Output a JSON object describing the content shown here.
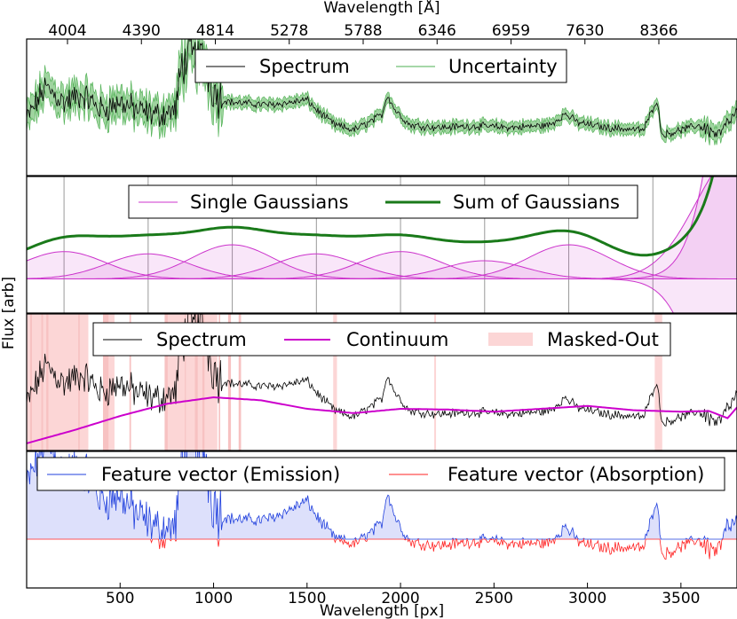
{
  "chart_data": {
    "type": "line",
    "shared": {
      "top_axis_label": "Wavelength [Å]",
      "top_ticks": [
        {
          "px": 100,
          "label": "4004"
        },
        {
          "px": 600,
          "label": "4390"
        },
        {
          "px": 1100,
          "label": "4814"
        },
        {
          "px": 1600,
          "label": "5278"
        },
        {
          "px": 2100,
          "label": "5788"
        },
        {
          "px": 2600,
          "label": "6346"
        },
        {
          "px": 3100,
          "label": "6959"
        },
        {
          "px": 3600,
          "label": "7630"
        },
        {
          "px": 4100,
          "label": "8366"
        }
      ],
      "bottom_axis_label": "Wavelength [px]",
      "bottom_ticks": [
        500,
        1000,
        1500,
        2000,
        2500,
        3000,
        3500
      ],
      "xlim": [
        0,
        3800
      ],
      "ylabel": "Flux [arb]",
      "grid": false
    },
    "panels": [
      {
        "name": "spectrum",
        "legend": [
          "Spectrum",
          "Uncertainty"
        ],
        "colors": {
          "spectrum": "#000000",
          "uncertainty": "#4caf50"
        },
        "ylim": [
          -1.0,
          1.7
        ],
        "anchors": [
          [
            0,
            0.1
          ],
          [
            100,
            0.75
          ],
          [
            200,
            0.45
          ],
          [
            300,
            0.6
          ],
          [
            400,
            0.3
          ],
          [
            500,
            0.45
          ],
          [
            600,
            0.28
          ],
          [
            700,
            0.2
          ],
          [
            800,
            0.3
          ],
          [
            830,
            1.2
          ],
          [
            880,
            1.4
          ],
          [
            950,
            1.3
          ],
          [
            1000,
            0.7
          ],
          [
            1050,
            0.5
          ],
          [
            1100,
            0.45
          ],
          [
            1200,
            0.42
          ],
          [
            1300,
            0.4
          ],
          [
            1400,
            0.44
          ],
          [
            1500,
            0.5
          ],
          [
            1550,
            0.3
          ],
          [
            1650,
            0.0
          ],
          [
            1750,
            -0.1
          ],
          [
            1830,
            0.05
          ],
          [
            1900,
            0.2
          ],
          [
            1930,
            0.6
          ],
          [
            1970,
            0.3
          ],
          [
            2050,
            0.0
          ],
          [
            2200,
            -0.05
          ],
          [
            2400,
            -0.02
          ],
          [
            2600,
            -0.05
          ],
          [
            2800,
            0.0
          ],
          [
            2880,
            0.22
          ],
          [
            2950,
            0.05
          ],
          [
            3100,
            -0.05
          ],
          [
            3300,
            -0.1
          ],
          [
            3370,
            0.5
          ],
          [
            3400,
            -0.2
          ],
          [
            3600,
            0.0
          ],
          [
            3700,
            -0.2
          ],
          [
            3800,
            0.25
          ]
        ]
      },
      {
        "name": "gaussians",
        "legend": [
          "Single Gaussians",
          "Sum of Gaussians"
        ],
        "colors": {
          "single": "#cc33cc",
          "sum": "#1a7a1a"
        },
        "ylim": [
          -0.15,
          0.45
        ],
        "vlines": [
          200,
          650,
          1100,
          1550,
          2000,
          2450,
          2900,
          3350
        ],
        "gaussians": [
          {
            "mu": 200,
            "sigma": 220,
            "amp": 0.12
          },
          {
            "mu": 650,
            "sigma": 220,
            "amp": 0.11
          },
          {
            "mu": 1100,
            "sigma": 220,
            "amp": 0.15
          },
          {
            "mu": 1550,
            "sigma": 220,
            "amp": 0.11
          },
          {
            "mu": 2000,
            "sigma": 220,
            "amp": 0.12
          },
          {
            "mu": 2450,
            "sigma": 220,
            "amp": 0.08
          },
          {
            "mu": 2900,
            "sigma": 220,
            "amp": 0.15
          },
          {
            "mu": 3800,
            "sigma": 220,
            "amp": 0.55
          },
          {
            "mu": 3950,
            "sigma": 220,
            "amp": -1.8
          },
          {
            "mu": 4100,
            "sigma": 220,
            "amp": 5.0
          }
        ],
        "sum_offset": 0.05
      },
      {
        "name": "continuum",
        "legend": [
          "Spectrum",
          "Continuum",
          "Masked-Out"
        ],
        "colors": {
          "spectrum": "#000000",
          "continuum": "#cc00cc",
          "masked": "#fcd6d6"
        },
        "ylim": [
          -0.6,
          1.3
        ],
        "masked_regions": [
          [
            0,
            330
          ],
          [
            430,
            470
          ],
          [
            740,
            1020
          ],
          [
            1640,
            1660
          ],
          [
            2180,
            2190
          ],
          [
            3360,
            3400
          ]
        ],
        "continuum": [
          [
            0,
            -0.5
          ],
          [
            250,
            -0.32
          ],
          [
            500,
            -0.12
          ],
          [
            750,
            0.05
          ],
          [
            1000,
            0.14
          ],
          [
            1250,
            0.1
          ],
          [
            1500,
            -0.02
          ],
          [
            1750,
            -0.08
          ],
          [
            2000,
            -0.02
          ],
          [
            2250,
            -0.03
          ],
          [
            2500,
            -0.06
          ],
          [
            2750,
            -0.02
          ],
          [
            3000,
            0.02
          ],
          [
            3250,
            -0.04
          ],
          [
            3500,
            -0.06
          ],
          [
            3650,
            -0.05
          ],
          [
            3750,
            -0.15
          ],
          [
            3800,
            0.0
          ]
        ]
      },
      {
        "name": "features",
        "legend": [
          "Feature vector (Emission)",
          "Feature vector (Absorption)"
        ],
        "colors": {
          "emission": "#1f3fdd",
          "absorption": "#ff2222",
          "emission_fill": "#dde0fb"
        },
        "ylim": [
          -0.5,
          0.9
        ]
      }
    ]
  }
}
